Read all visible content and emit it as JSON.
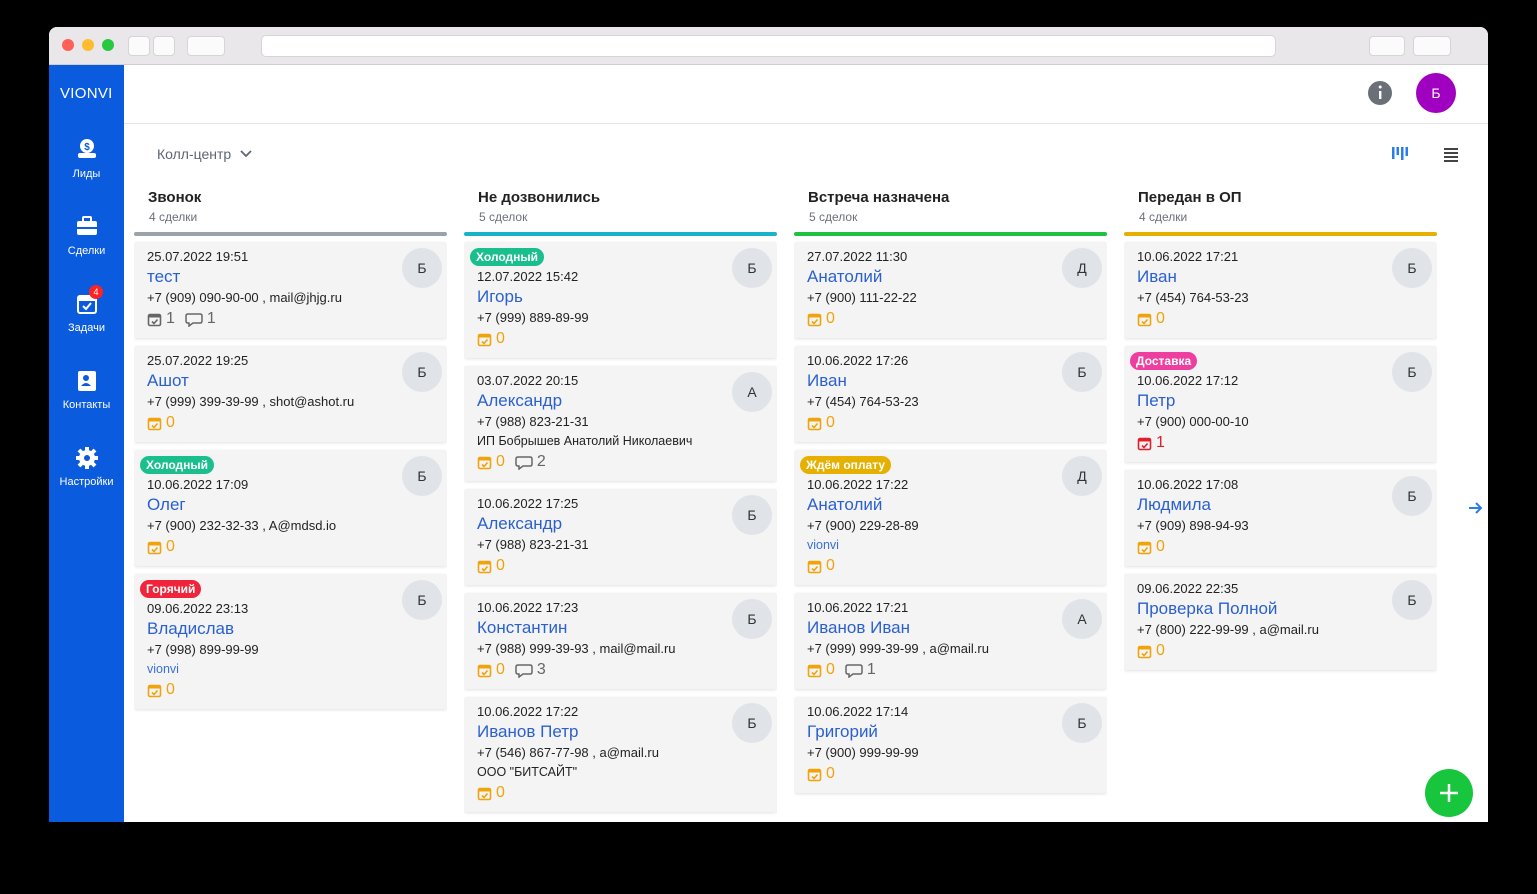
{
  "app": {
    "brand": "VIONVI",
    "user_initial": "Б",
    "nav": [
      {
        "label": "Лиды"
      },
      {
        "label": "Сделки"
      },
      {
        "label": "Задачи",
        "badge": "4"
      },
      {
        "label": "Контакты"
      },
      {
        "label": "Настройки"
      }
    ],
    "pipeline": "Колл-центр"
  },
  "columns": [
    {
      "title": "Звонок",
      "count": "4 сделки",
      "color": "#9aa2aa",
      "cards": [
        {
          "date": "25.07.2022 19:51",
          "name": "тест",
          "contact": "+7 (909) 090-90-00 , mail@jhjg.ru",
          "tasks": 1,
          "task_color": "#666666",
          "comments": 1,
          "avatar": "Б"
        },
        {
          "date": "25.07.2022 19:25",
          "name": "Ашот",
          "contact": "+7 (999) 399-39-99 , shot@ashot.ru",
          "tasks": 0,
          "task_color": "#f0a30a",
          "avatar": "Б"
        },
        {
          "tag": {
            "text": "Холодный",
            "color": "#1bbf8d"
          },
          "date": "10.06.2022 17:09",
          "name": "Олег",
          "contact": "+7 (900) 232-32-33 , A@mdsd.io",
          "tasks": 0,
          "task_color": "#f0a30a",
          "avatar": "Б"
        },
        {
          "tag": {
            "text": "Горячий",
            "color": "#f0243a"
          },
          "date": "09.06.2022 23:13",
          "name": "Владислав",
          "contact": "+7 (998) 899-99-99",
          "extra": "vionvi",
          "extra_color": "#3a6fd8",
          "tasks": 0,
          "task_color": "#f0a30a",
          "avatar": "Б"
        }
      ]
    },
    {
      "title": "Не дозвонились",
      "count": "5 сделок",
      "color": "#17b3c6",
      "cards": [
        {
          "tag": {
            "text": "Холодный",
            "color": "#1bbf8d"
          },
          "date": "12.07.2022 15:42",
          "name": "Игорь",
          "contact": "+7 (999) 889-89-99",
          "tasks": 0,
          "task_color": "#f0a30a",
          "avatar": "Б"
        },
        {
          "date": "03.07.2022 20:15",
          "name": "Александр",
          "contact": "+7 (988) 823-21-31",
          "extra": "ИП Бобрышев Анатолий Николаевич",
          "extra_color": "#222222",
          "tasks": 0,
          "task_color": "#f0a30a",
          "comments": 2,
          "avatar": "А"
        },
        {
          "date": "10.06.2022 17:25",
          "name": "Александр",
          "contact": "+7 (988) 823-21-31",
          "tasks": 0,
          "task_color": "#f0a30a",
          "avatar": "Б"
        },
        {
          "date": "10.06.2022 17:23",
          "name": "Константин",
          "contact": "+7 (988) 999-39-93 , mail@mail.ru",
          "tasks": 0,
          "task_color": "#f0a30a",
          "comments": 3,
          "avatar": "Б"
        },
        {
          "date": "10.06.2022 17:22",
          "name": "Иванов Петр",
          "contact": "+7 (546) 867-77-98 , a@mail.ru",
          "extra": "ООО \"БИТСАЙТ\"",
          "extra_color": "#222222",
          "tasks": 0,
          "task_color": "#f0a30a",
          "avatar": "Б"
        }
      ]
    },
    {
      "title": "Встреча назначена",
      "count": "5 сделок",
      "color": "#1fc142",
      "cards": [
        {
          "date": "27.07.2022 11:30",
          "name": "Анатолий",
          "contact": "+7 (900) 111-22-22",
          "tasks": 0,
          "task_color": "#f0a30a",
          "avatar": "Д"
        },
        {
          "date": "10.06.2022 17:26",
          "name": "Иван",
          "contact": "+7 (454) 764-53-23",
          "tasks": 0,
          "task_color": "#f0a30a",
          "avatar": "Б"
        },
        {
          "tag": {
            "text": "Ждём оплату",
            "color": "#e6b000"
          },
          "date": "10.06.2022 17:22",
          "name": "Анатолий",
          "contact": "+7 (900) 229-28-89",
          "extra": "vionvi",
          "extra_color": "#3a6fd8",
          "tasks": 0,
          "task_color": "#f0a30a",
          "avatar": "Д"
        },
        {
          "date": "10.06.2022 17:21",
          "name": "Иванов Иван",
          "contact": "+7 (999) 999-39-99 , a@mail.ru",
          "tasks": 0,
          "task_color": "#f0a30a",
          "comments": 1,
          "avatar": "А"
        },
        {
          "date": "10.06.2022 17:14",
          "name": "Григорий",
          "contact": "+7 (900) 999-99-99",
          "tasks": 0,
          "task_color": "#f0a30a",
          "avatar": "Б"
        }
      ]
    },
    {
      "title": "Передан в ОП",
      "count": "4 сделки",
      "color": "#e6b000",
      "cards": [
        {
          "date": "10.06.2022 17:21",
          "name": "Иван",
          "contact": "+7 (454) 764-53-23",
          "tasks": 0,
          "task_color": "#f0a30a",
          "avatar": "Б"
        },
        {
          "tag": {
            "text": "Доставка",
            "color": "#ee3ea0"
          },
          "date": "10.06.2022 17:12",
          "name": "Петр",
          "contact": "+7 (900) 000-00-10",
          "tasks": 1,
          "task_color": "#e0202a",
          "avatar": "Б"
        },
        {
          "date": "10.06.2022 17:08",
          "name": "Людмила",
          "contact": "+7 (909) 898-94-93",
          "tasks": 0,
          "task_color": "#f0a30a",
          "avatar": "Б"
        },
        {
          "date": "09.06.2022 22:35",
          "name": "Проверка Полной",
          "contact": "+7 (800) 222-99-99 , a@mail.ru",
          "tasks": 0,
          "task_color": "#f0a30a",
          "avatar": "Б"
        }
      ]
    }
  ]
}
